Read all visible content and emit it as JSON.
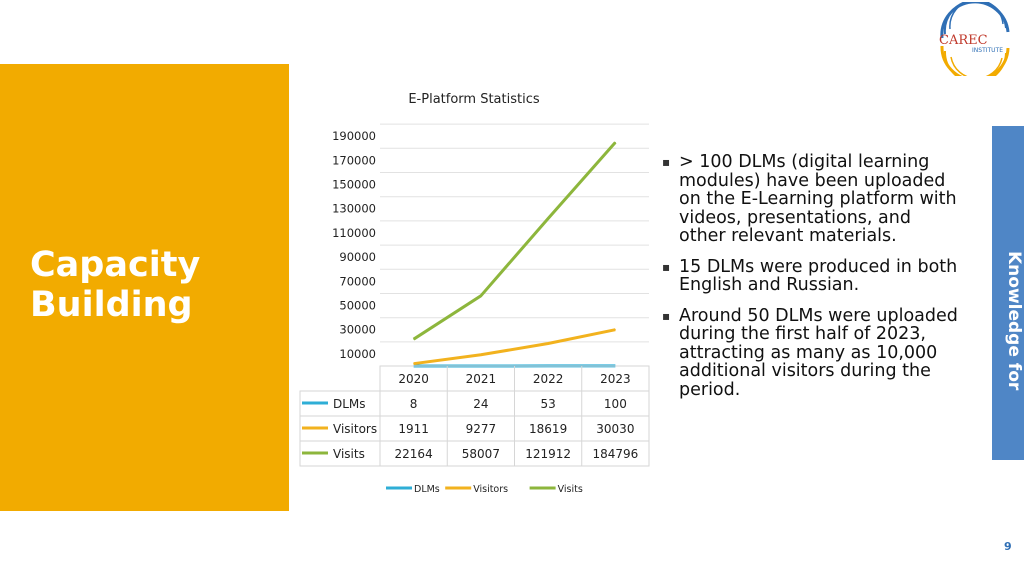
{
  "slide": {
    "title_line1": "Capacity",
    "title_line2": "Building",
    "side_tab": "Knowledge for",
    "page_number": "9",
    "logo": {
      "main": "CAREC",
      "sub": "INSTITUTE"
    }
  },
  "bullets": [
    "> 100 DLMs (digital learning modules) have been uploaded on the E-Learning platform with videos, presentations, and other relevant materials.",
    "15 DLMs were produced in both English and Russian.",
    "Around 50 DLMs were uploaded during the first half of 2023, attracting as many as 10,000 additional visitors during the period."
  ],
  "colors": {
    "panel": "#F2AB00",
    "side_tab": "#4F86C6",
    "dlms": "#2EAED6",
    "visitors": "#F2B21E",
    "visits": "#8DB63C"
  },
  "chart_data": {
    "type": "line",
    "title": "E-Platform Statistics",
    "categories": [
      "2020",
      "2021",
      "2022",
      "2023"
    ],
    "yticks": [
      "190000",
      "170000",
      "150000",
      "130000",
      "110000",
      "90000",
      "70000",
      "50000",
      "30000",
      "10000"
    ],
    "ylim": [
      0,
      200000
    ],
    "series": [
      {
        "name": "DLMs",
        "values": [
          8,
          24,
          53,
          100
        ],
        "color": "#2EAED6"
      },
      {
        "name": "Visitors",
        "values": [
          1911,
          9277,
          18619,
          30030
        ],
        "color": "#F2B21E"
      },
      {
        "name": "Visits",
        "values": [
          22164,
          58007,
          121912,
          184796
        ],
        "color": "#8DB63C"
      }
    ],
    "table": [
      {
        "name": "DLMs",
        "cells": [
          "8",
          "24",
          "53",
          "100"
        ]
      },
      {
        "name": "Visitors",
        "cells": [
          "1911",
          "9277",
          "18619",
          "30030"
        ]
      },
      {
        "name": "Visits",
        "cells": [
          "22164",
          "58007",
          "121912",
          "184796"
        ]
      }
    ],
    "legend": [
      "DLMs",
      "Visitors",
      "Visits"
    ],
    "legend_position": "bottom",
    "grid": true
  }
}
